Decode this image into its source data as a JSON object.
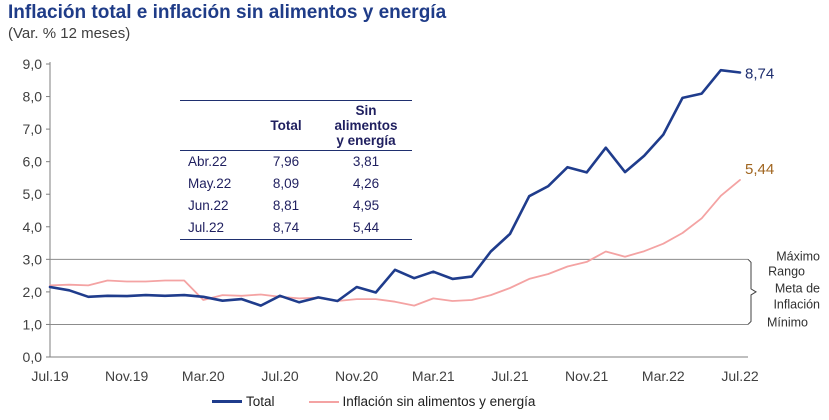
{
  "header": {
    "title": "Inflación total e inflación sin alimentos y energía",
    "subtitle": "(Var. % 12 meses)"
  },
  "table": {
    "headers": [
      "",
      "Total",
      "Sin alimentos\ny energía"
    ],
    "rows": [
      [
        "Abr.22",
        "7,96",
        "3,81"
      ],
      [
        "May.22",
        "8,09",
        "4,26"
      ],
      [
        "Jun.22",
        "8,81",
        "4,95"
      ],
      [
        "Jul.22",
        "8,74",
        "5,44"
      ]
    ]
  },
  "band": {
    "labels": [
      "Máximo",
      "Rango",
      "Meta de",
      "Inflación",
      "Mínimo"
    ],
    "min": 1.0,
    "max": 3.0
  },
  "chart_data": {
    "type": "line",
    "title": "Inflación total e inflación sin alimentos y energía",
    "subtitle": "(Var. % 12 meses)",
    "x": [
      "Jul.19",
      "Ago.19",
      "Sep.19",
      "Oct.19",
      "Nov.19",
      "Dic.19",
      "Ene.20",
      "Feb.20",
      "Mar.20",
      "Abr.20",
      "May.20",
      "Jun.20",
      "Jul.20",
      "Ago.20",
      "Sep.20",
      "Oct.20",
      "Nov.20",
      "Dic.20",
      "Ene.21",
      "Feb.21",
      "Mar.21",
      "Abr.21",
      "May.21",
      "Jun.21",
      "Jul.21",
      "Ago.21",
      "Sep.21",
      "Oct.21",
      "Nov.21",
      "Dic.21",
      "Ene.22",
      "Feb.22",
      "Mar.22",
      "Abr.22",
      "May.22",
      "Jun.22",
      "Jul.22"
    ],
    "tick_labels": [
      "Jul.19",
      "Nov.19",
      "Mar.20",
      "Jul.20",
      "Nov.20",
      "Mar.21",
      "Jul.21",
      "Nov.21",
      "Mar.22",
      "Jul.22"
    ],
    "tick_every": 4,
    "ylim": [
      0,
      9
    ],
    "yticks": [
      "0,0",
      "1,0",
      "2,0",
      "3,0",
      "4,0",
      "5,0",
      "6,0",
      "7,0",
      "8,0",
      "9,0"
    ],
    "grid": false,
    "reference_lines": [
      1.0,
      3.0
    ],
    "series": [
      {
        "name": "Total",
        "color": "#1f3c8c",
        "end_label": "8,74",
        "values": [
          2.15,
          2.05,
          1.85,
          1.88,
          1.87,
          1.9,
          1.88,
          1.9,
          1.85,
          1.73,
          1.78,
          1.58,
          1.88,
          1.68,
          1.83,
          1.72,
          2.15,
          1.98,
          2.68,
          2.42,
          2.62,
          2.4,
          2.47,
          3.24,
          3.78,
          4.94,
          5.25,
          5.83,
          5.67,
          6.43,
          5.68,
          6.18,
          6.83,
          7.96,
          8.09,
          8.81,
          8.74
        ]
      },
      {
        "name": "Inflación sin alimentos y energía",
        "color": "#f4a3a3",
        "end_label": "5,44",
        "values": [
          2.2,
          2.22,
          2.2,
          2.35,
          2.32,
          2.32,
          2.35,
          2.35,
          1.75,
          1.9,
          1.88,
          1.92,
          1.85,
          1.8,
          1.82,
          1.72,
          1.78,
          1.78,
          1.7,
          1.58,
          1.8,
          1.72,
          1.75,
          1.9,
          2.12,
          2.4,
          2.55,
          2.78,
          2.92,
          3.24,
          3.08,
          3.25,
          3.48,
          3.81,
          4.26,
          4.95,
          5.44
        ]
      }
    ],
    "legend_position": "bottom"
  }
}
